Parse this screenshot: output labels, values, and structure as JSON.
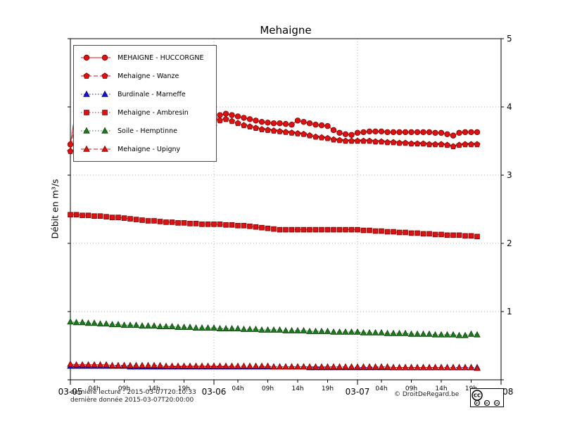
{
  "chart_data": {
    "type": "line",
    "title": "Mehaigne",
    "ylabel": "Débit en m³/s",
    "xlim": [
      0,
      72
    ],
    "ylim": [
      0,
      5
    ],
    "x_start_hour": 0,
    "x_step_hours": 1,
    "grid": {
      "x": [
        24,
        48
      ],
      "y": [
        1,
        2,
        3,
        4
      ]
    },
    "x_ticks": [
      {
        "pos": 0,
        "label": "03-05",
        "major": true
      },
      {
        "pos": 4,
        "label": "04h"
      },
      {
        "pos": 9,
        "label": "09h"
      },
      {
        "pos": 14,
        "label": "14h"
      },
      {
        "pos": 19,
        "label": "19h"
      },
      {
        "pos": 24,
        "label": "03-06",
        "major": true
      },
      {
        "pos": 28,
        "label": "04h"
      },
      {
        "pos": 33,
        "label": "09h"
      },
      {
        "pos": 38,
        "label": "14h"
      },
      {
        "pos": 43,
        "label": "19h"
      },
      {
        "pos": 48,
        "label": "03-07",
        "major": true
      },
      {
        "pos": 52,
        "label": "04h"
      },
      {
        "pos": 57,
        "label": "09h"
      },
      {
        "pos": 62,
        "label": "14h"
      },
      {
        "pos": 67,
        "label": "19h"
      },
      {
        "pos": 72,
        "label": "03-08",
        "major": true
      }
    ],
    "y_ticks": [
      {
        "pos": 0,
        "label": ""
      },
      {
        "pos": 1,
        "label": "1"
      },
      {
        "pos": 2,
        "label": "2"
      },
      {
        "pos": 3,
        "label": "3"
      },
      {
        "pos": 4,
        "label": "4"
      },
      {
        "pos": 5,
        "label": "5"
      }
    ],
    "series": [
      {
        "name": "MEHAIGNE - HUCCORGNE",
        "marker": "circle",
        "line": "solid",
        "color": "#dd1111",
        "edge": "#7a0000",
        "values": [
          3.45,
          4.02,
          4.08,
          4.05,
          4.03,
          4.0,
          3.98,
          3.96,
          3.94,
          3.92,
          3.9,
          3.89,
          3.87,
          3.86,
          3.85,
          3.84,
          3.83,
          3.82,
          3.81,
          3.8,
          3.79,
          3.79,
          3.78,
          3.78,
          3.78,
          3.88,
          3.9,
          3.88,
          3.86,
          3.84,
          3.82,
          3.8,
          3.78,
          3.77,
          3.76,
          3.76,
          3.75,
          3.74,
          3.8,
          3.78,
          3.76,
          3.74,
          3.73,
          3.72,
          3.66,
          3.62,
          3.6,
          3.59,
          3.62,
          3.63,
          3.64,
          3.64,
          3.64,
          3.63,
          3.63,
          3.63,
          3.63,
          3.63,
          3.63,
          3.63,
          3.63,
          3.62,
          3.62,
          3.6,
          3.58,
          3.62,
          3.63,
          3.63,
          3.63
        ]
      },
      {
        "name": "Mehaigne - Wanze",
        "marker": "pentagon",
        "line": "dashed",
        "color": "#dd1111",
        "edge": "#7a0000",
        "values": [
          3.35,
          3.9,
          3.96,
          3.94,
          3.92,
          3.9,
          3.88,
          3.86,
          3.85,
          3.83,
          3.82,
          3.8,
          3.79,
          3.78,
          3.77,
          3.76,
          3.75,
          3.75,
          3.74,
          3.74,
          3.73,
          3.73,
          3.72,
          3.72,
          3.72,
          3.8,
          3.82,
          3.79,
          3.76,
          3.73,
          3.71,
          3.69,
          3.67,
          3.66,
          3.65,
          3.64,
          3.63,
          3.62,
          3.61,
          3.6,
          3.58,
          3.56,
          3.55,
          3.54,
          3.52,
          3.51,
          3.5,
          3.5,
          3.5,
          3.5,
          3.5,
          3.49,
          3.49,
          3.48,
          3.48,
          3.47,
          3.47,
          3.46,
          3.46,
          3.46,
          3.45,
          3.45,
          3.45,
          3.44,
          3.42,
          3.44,
          3.45,
          3.45,
          3.45
        ]
      },
      {
        "name": "Burdinale - Marneffe",
        "marker": "triangle",
        "line": "dotted",
        "color": "#1414cc",
        "edge": "#000080",
        "values": [
          0.2,
          0.2,
          0.2,
          0.2,
          0.2,
          0.2,
          0.2,
          0.2,
          0.2,
          0.2,
          0.19,
          0.19,
          0.19,
          0.19,
          0.19,
          0.19,
          0.19,
          0.19,
          0.19,
          0.19,
          0.19,
          0.19,
          0.19,
          0.19,
          0.19,
          0.19,
          0.19,
          0.19,
          0.19,
          0.19,
          0.19,
          0.19,
          0.19,
          0.19,
          0.19,
          0.19,
          0.19,
          0.19,
          0.19,
          0.19,
          0.18,
          0.18,
          0.18,
          0.18,
          0.18,
          0.18,
          0.18,
          0.18,
          0.18,
          0.18,
          0.18,
          0.18,
          0.18,
          0.18,
          0.18,
          0.18,
          0.18,
          0.18,
          0.18,
          0.18,
          0.18,
          0.18,
          0.18,
          0.18,
          0.18,
          0.18,
          0.18,
          0.18,
          0.18
        ]
      },
      {
        "name": "Mehaigne - Ambresin",
        "marker": "square",
        "line": "dotted",
        "color": "#dd1111",
        "edge": "#7a0000",
        "values": [
          2.42,
          2.42,
          2.41,
          2.41,
          2.4,
          2.4,
          2.39,
          2.38,
          2.38,
          2.37,
          2.36,
          2.35,
          2.34,
          2.33,
          2.33,
          2.32,
          2.31,
          2.31,
          2.3,
          2.3,
          2.29,
          2.29,
          2.28,
          2.28,
          2.28,
          2.28,
          2.27,
          2.27,
          2.26,
          2.26,
          2.25,
          2.24,
          2.23,
          2.22,
          2.21,
          2.2,
          2.2,
          2.2,
          2.2,
          2.2,
          2.2,
          2.2,
          2.2,
          2.2,
          2.2,
          2.2,
          2.2,
          2.2,
          2.2,
          2.19,
          2.19,
          2.18,
          2.18,
          2.17,
          2.17,
          2.16,
          2.16,
          2.15,
          2.15,
          2.14,
          2.14,
          2.13,
          2.13,
          2.12,
          2.12,
          2.12,
          2.11,
          2.11,
          2.1
        ]
      },
      {
        "name": "Soile - Hemptinne",
        "marker": "triangle",
        "line": "dotted",
        "color": "#1f7a1f",
        "edge": "#0b440b",
        "values": [
          0.85,
          0.84,
          0.84,
          0.83,
          0.83,
          0.82,
          0.82,
          0.81,
          0.81,
          0.8,
          0.8,
          0.8,
          0.79,
          0.79,
          0.79,
          0.78,
          0.78,
          0.78,
          0.77,
          0.77,
          0.77,
          0.76,
          0.76,
          0.76,
          0.76,
          0.75,
          0.75,
          0.75,
          0.75,
          0.74,
          0.74,
          0.74,
          0.73,
          0.73,
          0.73,
          0.73,
          0.72,
          0.72,
          0.72,
          0.72,
          0.71,
          0.71,
          0.71,
          0.71,
          0.7,
          0.7,
          0.7,
          0.7,
          0.7,
          0.69,
          0.69,
          0.69,
          0.69,
          0.68,
          0.68,
          0.68,
          0.68,
          0.67,
          0.67,
          0.67,
          0.67,
          0.66,
          0.66,
          0.66,
          0.66,
          0.65,
          0.65,
          0.67,
          0.66
        ]
      },
      {
        "name": "Mehaigne - Upigny",
        "marker": "triangle",
        "line": "dashed",
        "color": "#dd1111",
        "edge": "#7a0000",
        "values": [
          0.23,
          0.22,
          0.22,
          0.22,
          0.22,
          0.22,
          0.22,
          0.21,
          0.21,
          0.21,
          0.21,
          0.21,
          0.21,
          0.21,
          0.21,
          0.21,
          0.2,
          0.2,
          0.2,
          0.2,
          0.2,
          0.2,
          0.2,
          0.2,
          0.2,
          0.2,
          0.2,
          0.2,
          0.2,
          0.2,
          0.2,
          0.2,
          0.2,
          0.2,
          0.19,
          0.19,
          0.19,
          0.19,
          0.19,
          0.19,
          0.19,
          0.19,
          0.19,
          0.19,
          0.19,
          0.19,
          0.19,
          0.19,
          0.19,
          0.19,
          0.19,
          0.19,
          0.19,
          0.19,
          0.18,
          0.18,
          0.18,
          0.18,
          0.18,
          0.18,
          0.18,
          0.18,
          0.18,
          0.18,
          0.18,
          0.18,
          0.18,
          0.18,
          0.17
        ]
      }
    ],
    "legend_position": "top-left"
  },
  "footer": {
    "last_reading": "dernière lecture : 2015-03-07T20:10:33",
    "last_data": "dernière donnée  2015-03-07T20:00:00",
    "copyright": "© DroitDeRegard.be"
  },
  "cc_badge": {
    "cc": "CC",
    "by": "BY",
    "nc": "NC",
    "sa": "SA"
  }
}
